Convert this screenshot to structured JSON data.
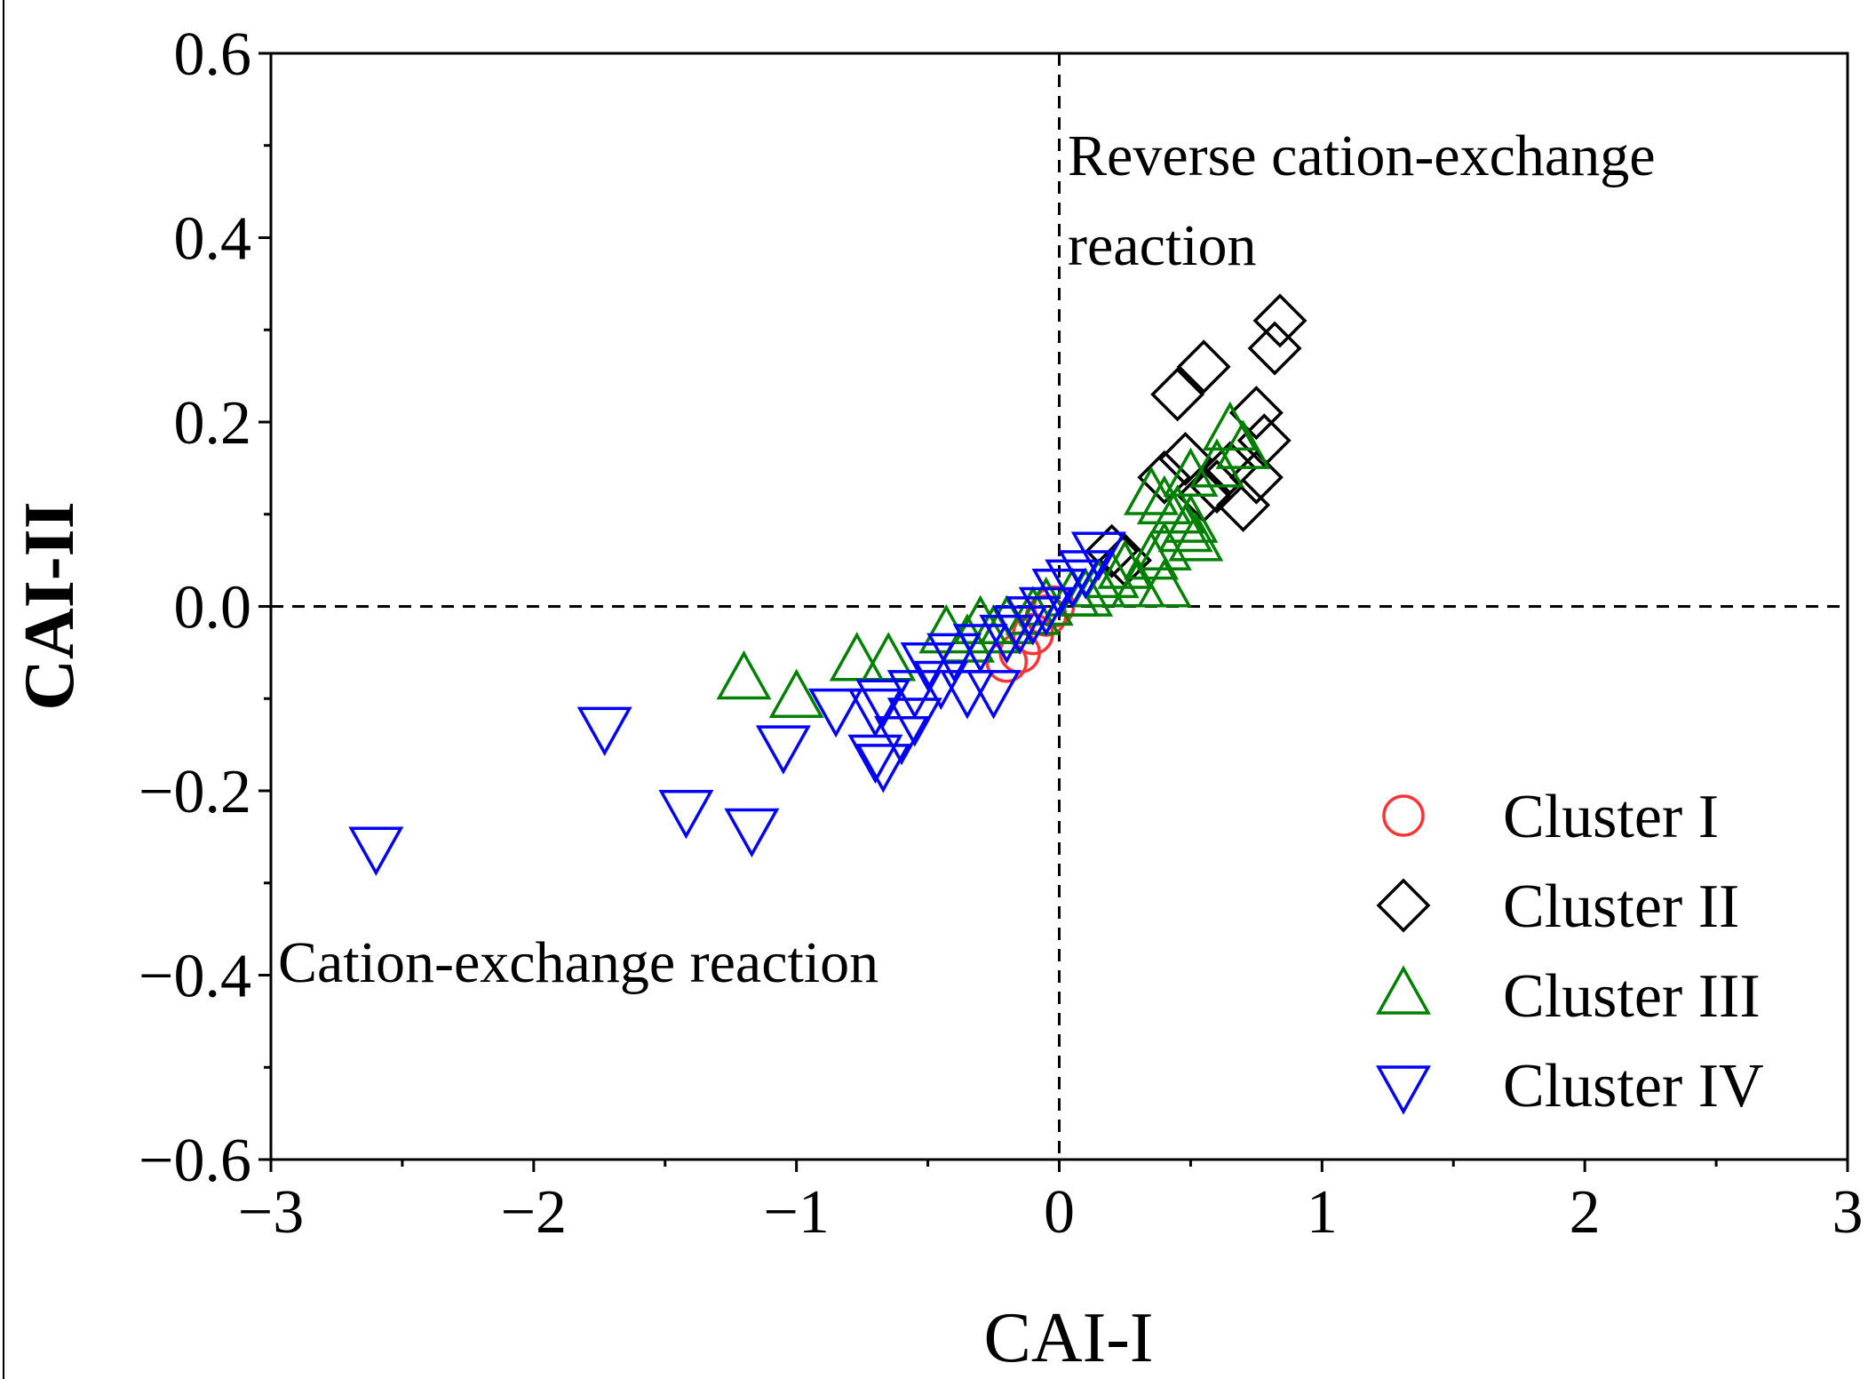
{
  "chart_data": {
    "type": "scatter",
    "xlabel": "CAI-I",
    "ylabel": "CAI-II",
    "xlim": [
      -3,
      3
    ],
    "ylim": [
      -0.6,
      0.6
    ],
    "xticks": [
      -3,
      -2,
      -1,
      0,
      1,
      2,
      3
    ],
    "yticks": [
      -0.6,
      -0.4,
      -0.2,
      0.0,
      0.2,
      0.4,
      0.6
    ],
    "xtick_labels": [
      "−3",
      "−2",
      "−1",
      "0",
      "1",
      "2",
      "3"
    ],
    "ytick_labels": [
      "−0.6",
      "−0.4",
      "−0.2",
      "0.0",
      "0.2",
      "0.4",
      "0.6"
    ],
    "grid": false,
    "reference_lines": {
      "x": 0,
      "y": 0,
      "style": "dashed"
    },
    "annotations": [
      {
        "id": "reverse",
        "lines": [
          "Reverse cation-exchange",
          "reaction"
        ]
      },
      {
        "id": "forward",
        "lines": [
          "Cation-exchange reaction"
        ]
      }
    ],
    "legend": {
      "position": "bottom-right"
    },
    "series": [
      {
        "name": "Cluster I",
        "marker": "circle",
        "color": "#ff3333",
        "points": [
          [
            -0.02,
            0.0
          ],
          [
            -0.05,
            -0.01
          ],
          [
            -0.2,
            -0.06
          ],
          [
            -0.15,
            -0.05
          ],
          [
            -0.1,
            -0.03
          ]
        ]
      },
      {
        "name": "Cluster II",
        "marker": "diamond",
        "color": "#000000",
        "points": [
          [
            0.84,
            0.31
          ],
          [
            0.82,
            0.28
          ],
          [
            0.55,
            0.26
          ],
          [
            0.45,
            0.23
          ],
          [
            0.75,
            0.21
          ],
          [
            0.78,
            0.18
          ],
          [
            0.48,
            0.16
          ],
          [
            0.4,
            0.14
          ],
          [
            0.65,
            0.15
          ],
          [
            0.75,
            0.14
          ],
          [
            0.6,
            0.13
          ],
          [
            0.55,
            0.12
          ],
          [
            0.7,
            0.11
          ],
          [
            0.2,
            0.06
          ],
          [
            0.25,
            0.05
          ]
        ]
      },
      {
        "name": "Cluster III",
        "marker": "triangle-up",
        "color": "#008000",
        "points": [
          [
            0.65,
            0.19
          ],
          [
            0.7,
            0.17
          ],
          [
            0.6,
            0.15
          ],
          [
            0.5,
            0.14
          ],
          [
            0.35,
            0.12
          ],
          [
            0.4,
            0.11
          ],
          [
            0.45,
            0.1
          ],
          [
            0.5,
            0.09
          ],
          [
            0.48,
            0.08
          ],
          [
            0.52,
            0.07
          ],
          [
            0.4,
            0.06
          ],
          [
            0.35,
            0.05
          ],
          [
            0.25,
            0.04
          ],
          [
            0.2,
            0.03
          ],
          [
            0.4,
            0.02
          ],
          [
            0.3,
            0.02
          ],
          [
            0.15,
            0.02
          ],
          [
            0.1,
            0.01
          ],
          [
            0.05,
            0.01
          ],
          [
            -0.05,
            0.0
          ],
          [
            -0.1,
            -0.01
          ],
          [
            -0.2,
            -0.02
          ],
          [
            -0.3,
            -0.02
          ],
          [
            -0.43,
            -0.03
          ],
          [
            -0.35,
            -0.04
          ],
          [
            -0.25,
            -0.03
          ],
          [
            -0.65,
            -0.06
          ],
          [
            -0.77,
            -0.06
          ],
          [
            -1.2,
            -0.08
          ],
          [
            -1.0,
            -0.1
          ]
        ]
      },
      {
        "name": "Cluster IV",
        "marker": "triangle-down",
        "color": "#0000ff",
        "points": [
          [
            0.15,
            0.06
          ],
          [
            0.1,
            0.04
          ],
          [
            0.05,
            0.03
          ],
          [
            0.0,
            0.02
          ],
          [
            -0.05,
            0.0
          ],
          [
            -0.1,
            -0.01
          ],
          [
            -0.15,
            -0.02
          ],
          [
            -0.2,
            -0.03
          ],
          [
            -0.3,
            -0.04
          ],
          [
            -0.4,
            -0.05
          ],
          [
            -0.5,
            -0.06
          ],
          [
            -0.45,
            -0.08
          ],
          [
            -0.35,
            -0.09
          ],
          [
            -0.25,
            -0.09
          ],
          [
            -0.55,
            -0.09
          ],
          [
            -0.67,
            -0.1
          ],
          [
            -0.85,
            -0.11
          ],
          [
            -0.7,
            -0.11
          ],
          [
            -0.55,
            -0.12
          ],
          [
            -0.6,
            -0.14
          ],
          [
            -0.7,
            -0.16
          ],
          [
            -0.67,
            -0.17
          ],
          [
            -1.05,
            -0.15
          ],
          [
            -1.73,
            -0.13
          ],
          [
            -1.42,
            -0.22
          ],
          [
            -1.17,
            -0.24
          ],
          [
            -2.6,
            -0.26
          ]
        ]
      }
    ]
  }
}
